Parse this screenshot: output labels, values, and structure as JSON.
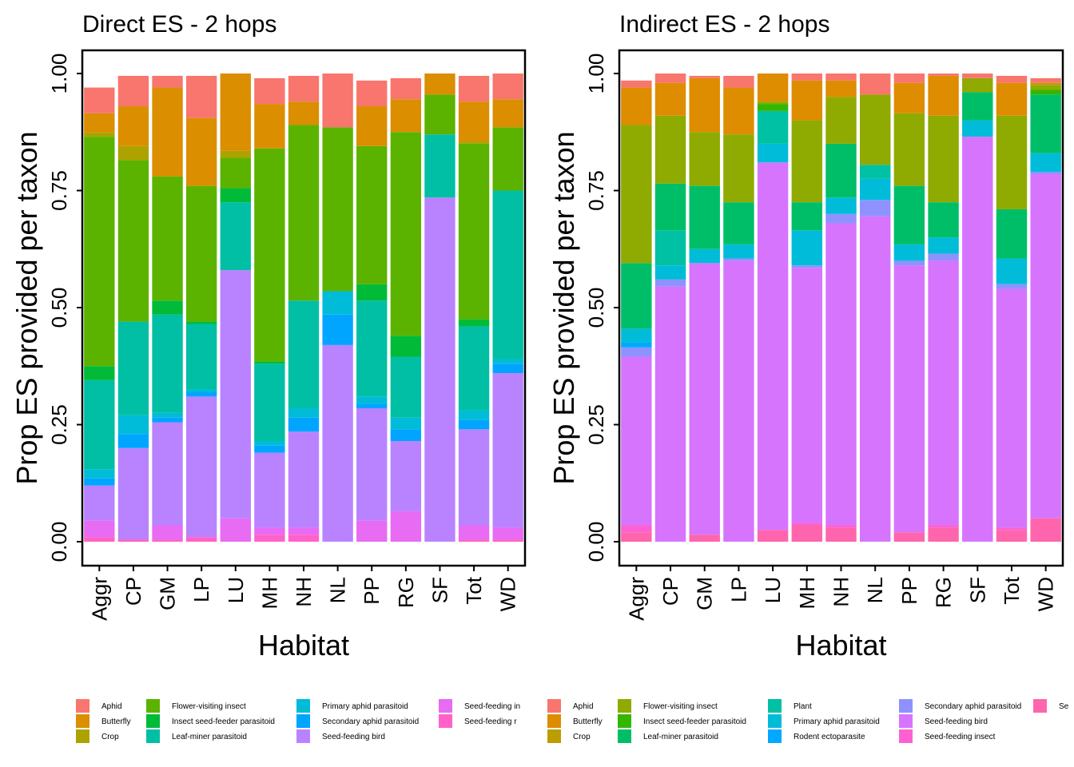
{
  "chart_data": [
    {
      "type": "bar",
      "stacked": true,
      "title": "Direct ES - 2 hops",
      "xlabel": "Habitat",
      "ylabel": "Prop ES provided per taxon",
      "ylim": [
        0,
        1
      ],
      "yticks": [
        "0.00",
        "0.25",
        "0.50",
        "0.75",
        "1.00"
      ],
      "categories": [
        "Aggr",
        "CP",
        "GM",
        "LP",
        "LU",
        "MH",
        "NH",
        "NL",
        "PP",
        "RG",
        "SF",
        "Tot",
        "WD"
      ],
      "legend_position": "bottom",
      "series": [
        {
          "name": "Seed-feeding r",
          "color": "#FF61C9",
          "values": [
            0.01,
            0.005,
            0.005,
            0.01,
            0.0,
            0.015,
            0.015,
            0.0,
            0.0,
            0.0,
            0.0,
            0.005,
            0.005
          ]
        },
        {
          "name": "Seed-feeding in",
          "color": "#E76BF3",
          "values": [
            0.035,
            0.0,
            0.03,
            0.0,
            0.05,
            0.015,
            0.015,
            0.0,
            0.045,
            0.065,
            0.0,
            0.03,
            0.025
          ]
        },
        {
          "name": "Seed-feeding bird",
          "color": "#B983FF",
          "values": [
            0.075,
            0.195,
            0.22,
            0.3,
            0.53,
            0.16,
            0.205,
            0.42,
            0.24,
            0.15,
            0.735,
            0.205,
            0.33
          ]
        },
        {
          "name": "Secondary aphid parasitoid",
          "color": "#00A5FF",
          "values": [
            0.015,
            0.03,
            0.01,
            0.01,
            0.0,
            0.015,
            0.03,
            0.065,
            0.01,
            0.025,
            0.0,
            0.02,
            0.02
          ]
        },
        {
          "name": "Primary aphid parasitoid",
          "color": "#00BCD8",
          "values": [
            0.02,
            0.04,
            0.01,
            0.005,
            0.0,
            0.01,
            0.02,
            0.05,
            0.015,
            0.025,
            0.0,
            0.02,
            0.01
          ]
        },
        {
          "name": "Leaf-miner parasitoid",
          "color": "#00BFA4",
          "values": [
            0.19,
            0.2,
            0.21,
            0.14,
            0.145,
            0.165,
            0.23,
            0.0,
            0.205,
            0.13,
            0.135,
            0.18,
            0.36
          ]
        },
        {
          "name": "Insect seed-feeder parasitoid",
          "color": "#00BA38",
          "values": [
            0.03,
            0.0,
            0.03,
            0.005,
            0.03,
            0.005,
            0.0,
            0.0,
            0.035,
            0.045,
            0.0,
            0.015,
            0.0
          ]
        },
        {
          "name": "Flower-visiting insect",
          "color": "#5BB300",
          "values": [
            0.49,
            0.345,
            0.265,
            0.29,
            0.065,
            0.455,
            0.375,
            0.35,
            0.295,
            0.435,
            0.085,
            0.375,
            0.135
          ]
        },
        {
          "name": "Crop",
          "color": "#AEA200",
          "values": [
            0.01,
            0.03,
            0.0,
            0.0,
            0.015,
            0.0,
            0.0,
            0.0,
            0.0,
            0.0,
            0.0,
            0.005,
            0.0
          ]
        },
        {
          "name": "Butterfly",
          "color": "#DB8E00",
          "values": [
            0.04,
            0.085,
            0.19,
            0.145,
            0.165,
            0.095,
            0.05,
            0.0,
            0.085,
            0.07,
            0.045,
            0.085,
            0.06
          ]
        },
        {
          "name": "Aphid",
          "color": "#F8766D",
          "values": [
            0.055,
            0.065,
            0.025,
            0.09,
            0.0,
            0.055,
            0.055,
            0.115,
            0.055,
            0.045,
            0.0,
            0.055,
            0.055
          ]
        }
      ]
    },
    {
      "type": "bar",
      "stacked": true,
      "title": "Indirect ES - 2 hops",
      "xlabel": "Habitat",
      "ylabel": "Prop ES provided per taxon",
      "ylim": [
        0,
        1
      ],
      "yticks": [
        "0.00",
        "0.25",
        "0.50",
        "0.75",
        "1.00"
      ],
      "categories": [
        "Aggr",
        "CP",
        "GM",
        "LP",
        "LU",
        "MH",
        "NH",
        "NL",
        "PP",
        "RG",
        "SF",
        "Tot",
        "WD"
      ],
      "legend_position": "bottom",
      "series": [
        {
          "name": "Se",
          "color": "#FF65AC",
          "values": [
            0.02,
            0.0,
            0.015,
            0.0,
            0.025,
            0.035,
            0.03,
            0.0,
            0.02,
            0.03,
            0.0,
            0.025,
            0.05
          ]
        },
        {
          "name": "Seed-feeding insect",
          "color": "#FD61D1",
          "values": [
            0.015,
            0.0,
            0.0,
            0.0,
            0.0,
            0.005,
            0.005,
            0.0,
            0.0,
            0.005,
            0.0,
            0.005,
            0.0
          ]
        },
        {
          "name": "Seed-feeding bird",
          "color": "#D674FE",
          "values": [
            0.36,
            0.545,
            0.58,
            0.6,
            0.785,
            0.545,
            0.645,
            0.695,
            0.57,
            0.565,
            0.865,
            0.51,
            0.735
          ]
        },
        {
          "name": "Secondary aphid parasitoid",
          "color": "#8F91FF",
          "values": [
            0.02,
            0.015,
            0.0,
            0.005,
            0.0,
            0.005,
            0.02,
            0.035,
            0.01,
            0.015,
            0.0,
            0.01,
            0.005
          ]
        },
        {
          "name": "Rodent ectoparasite",
          "color": "#00A9FF",
          "values": [
            0.01,
            0.0,
            0.0,
            0.0,
            0.0,
            0.0,
            0.0,
            0.0,
            0.0,
            0.0,
            0.0,
            0.0,
            0.0
          ]
        },
        {
          "name": "Primary aphid parasitoid",
          "color": "#00BCD8",
          "values": [
            0.03,
            0.03,
            0.03,
            0.03,
            0.04,
            0.075,
            0.035,
            0.045,
            0.035,
            0.035,
            0.035,
            0.055,
            0.04
          ]
        },
        {
          "name": "Plant",
          "color": "#00C1A3",
          "values": [
            0.0,
            0.075,
            0.0,
            0.0,
            0.07,
            0.0,
            0.0,
            0.03,
            0.0,
            0.0,
            0.0,
            0.0,
            0.0
          ]
        },
        {
          "name": "Leaf-miner parasitoid",
          "color": "#00BE67",
          "values": [
            0.14,
            0.1,
            0.135,
            0.09,
            0.0,
            0.06,
            0.115,
            0.0,
            0.125,
            0.075,
            0.06,
            0.105,
            0.125
          ]
        },
        {
          "name": "Insect seed-feeder parasitoid",
          "color": "#35B600",
          "values": [
            0.0,
            0.0,
            0.0,
            0.0,
            0.015,
            0.0,
            0.0,
            0.0,
            0.0,
            0.0,
            0.0,
            0.0,
            0.01
          ]
        },
        {
          "name": "Flower-visiting insect",
          "color": "#8FAA00",
          "values": [
            0.295,
            0.145,
            0.115,
            0.145,
            0.005,
            0.175,
            0.1,
            0.15,
            0.155,
            0.185,
            0.03,
            0.2,
            0.01
          ]
        },
        {
          "name": "Crop",
          "color": "#BB9D00",
          "values": [
            0.0,
            0.0,
            0.0,
            0.0,
            0.0,
            0.0,
            0.0,
            0.0,
            0.0,
            0.0,
            0.0,
            0.0,
            0.005
          ]
        },
        {
          "name": "Butterfly",
          "color": "#DE8C00",
          "values": [
            0.08,
            0.07,
            0.115,
            0.1,
            0.06,
            0.085,
            0.035,
            0.0,
            0.065,
            0.085,
            0.0,
            0.07,
            0.0
          ]
        },
        {
          "name": "Aphid",
          "color": "#F8766D",
          "values": [
            0.015,
            0.02,
            0.005,
            0.025,
            0.0,
            0.015,
            0.015,
            0.045,
            0.02,
            0.005,
            0.01,
            0.015,
            0.01
          ]
        }
      ]
    }
  ],
  "legends": [
    {
      "items": [
        {
          "label": "Aphid",
          "color": "#F8766D"
        },
        {
          "label": "Butterfly",
          "color": "#DB8E00"
        },
        {
          "label": "Crop",
          "color": "#AEA200"
        },
        {
          "label": "Flower-visiting insect",
          "color": "#5BB300"
        },
        {
          "label": "Insect seed-feeder parasitoid",
          "color": "#00BA38"
        },
        {
          "label": "Leaf-miner parasitoid",
          "color": "#00BFA4"
        },
        {
          "label": "Primary aphid parasitoid",
          "color": "#00BCD8"
        },
        {
          "label": "Secondary aphid parasitoid",
          "color": "#00A5FF"
        },
        {
          "label": "Seed-feeding bird",
          "color": "#B983FF"
        },
        {
          "label": "Seed-feeding in",
          "color": "#E76BF3"
        },
        {
          "label": "Seed-feeding r",
          "color": "#FF61C9"
        }
      ]
    },
    {
      "items": [
        {
          "label": "Aphid",
          "color": "#F8766D"
        },
        {
          "label": "Butterfly",
          "color": "#DE8C00"
        },
        {
          "label": "Crop",
          "color": "#BB9D00"
        },
        {
          "label": "Flower-visiting insect",
          "color": "#8FAA00"
        },
        {
          "label": "Insect seed-feeder parasitoid",
          "color": "#35B600"
        },
        {
          "label": "Leaf-miner parasitoid",
          "color": "#00BE67"
        },
        {
          "label": "Plant",
          "color": "#00C1A3"
        },
        {
          "label": "Primary aphid parasitoid",
          "color": "#00BCD8"
        },
        {
          "label": "Rodent ectoparasite",
          "color": "#00A9FF"
        },
        {
          "label": "Secondary aphid parasitoid",
          "color": "#8F91FF"
        },
        {
          "label": "Seed-feeding bird",
          "color": "#D674FE"
        },
        {
          "label": "Seed-feeding insect",
          "color": "#FD61D1"
        },
        {
          "label": "Se",
          "color": "#FF65AC"
        }
      ]
    }
  ]
}
